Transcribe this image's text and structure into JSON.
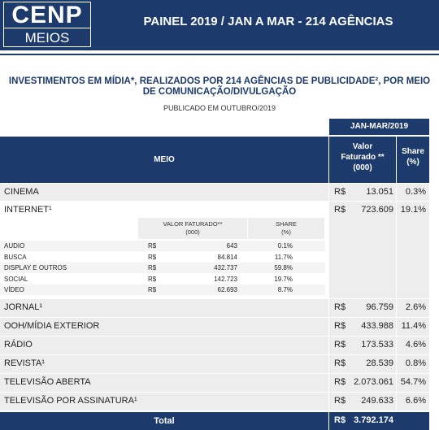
{
  "header": {
    "logo_top": "CENP",
    "logo_bottom": "MEIOS",
    "title": "PAINEL 2019 / JAN A MAR - 214 AGÊNCIAS"
  },
  "heading": "INVESTIMENTOS EM MÍDIA*, REALIZADOS POR 214 AGÊNCIAS DE PUBLICIDADE², POR MEIO DE COMUNICAÇÃO/DIVULGAÇÃO",
  "subheading": "PUBLICADO EM OUTUBRO/2019",
  "table": {
    "period": "JAN-MAR/2019",
    "columns": [
      "MEIO",
      "Valor\nFaturado **\n(000)",
      "Share\n(%)"
    ],
    "rows": [
      [
        "CINEMA",
        "R$",
        "13.051",
        "0.3%"
      ],
      [
        "INTERNET¹",
        "R$",
        "723.609",
        "19.1%"
      ],
      [
        "JORNAL¹",
        "R$",
        "96.759",
        "2.6%"
      ],
      [
        "OOH/MÍDIA EXTERIOR",
        "R$",
        "433.988",
        "11.4%"
      ],
      [
        "RÁDIO",
        "R$",
        "173.533",
        "4.6%"
      ],
      [
        "REVISTA¹",
        "R$",
        "28.539",
        "0.8%"
      ],
      [
        "TELEVISÃO ABERTA",
        "R$",
        "2.073.061",
        "54.7%"
      ],
      [
        "TELEVISÃO POR ASSINATURA¹",
        "R$",
        "249.633",
        "6.6%"
      ]
    ],
    "internet_breakdown": {
      "columns": [
        "VALOR FATURADO**\n(000)",
        "SHARE\n(%)"
      ],
      "rows": [
        [
          "AUDIO",
          "R$",
          "643",
          "0.1%"
        ],
        [
          "BUSCA",
          "R$",
          "84.814",
          "11.7%"
        ],
        [
          "DISPLAY E OUTROS",
          "R$",
          "432.737",
          "59.8%"
        ],
        [
          "SOCIAL",
          "R$",
          "142.723",
          "19.7%"
        ],
        [
          "VÍDEO",
          "R$",
          "62.693",
          "8.7%"
        ]
      ]
    },
    "total": [
      "Total",
      "R$",
      "3.792.174"
    ]
  }
}
